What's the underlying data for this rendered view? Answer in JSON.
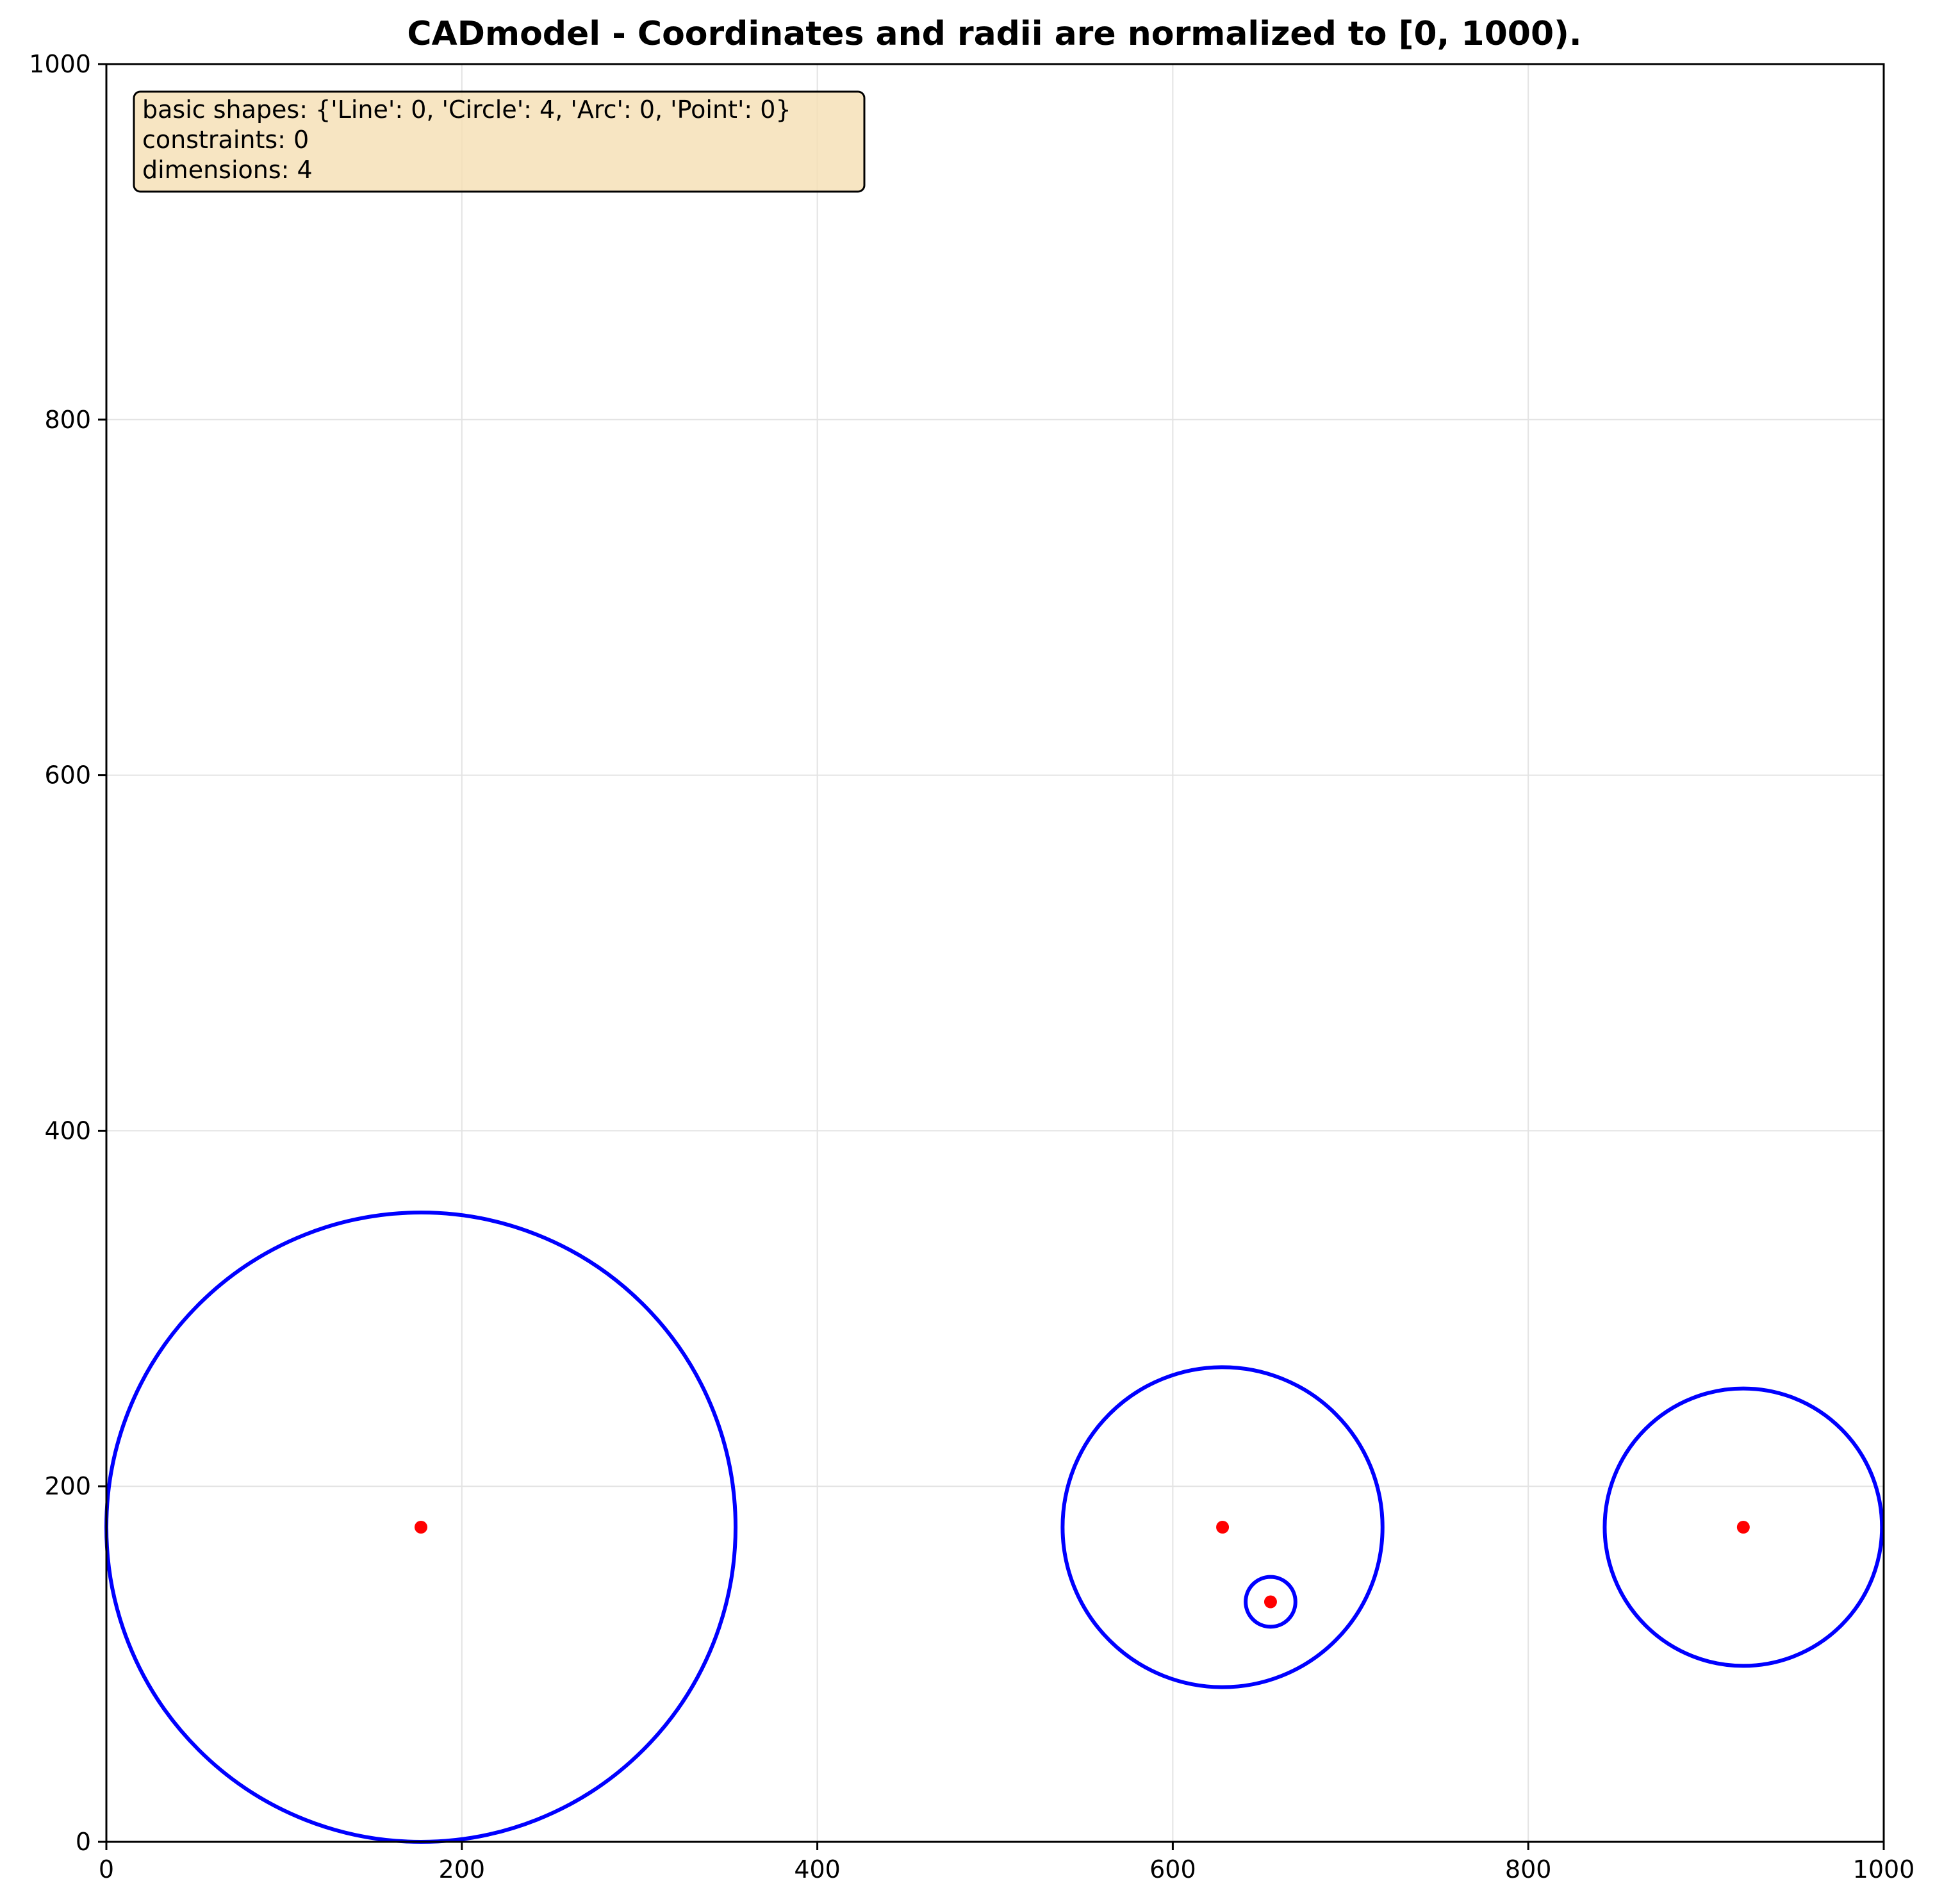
{
  "title": "CADmodel - Coordinates and radii are normalized to [0, 1000).",
  "info_box": {
    "lines": [
      "basic shapes: {'Line': 0, 'Circle': 4, 'Arc': 0, 'Point': 0}",
      "constraints: 0",
      "dimensions: 4"
    ],
    "background": "#f5deb3",
    "border": "#000000"
  },
  "chart_data": {
    "type": "scatter",
    "xlim": [
      0,
      1000
    ],
    "ylim": [
      0,
      1000
    ],
    "x_ticks": [
      "0",
      "200",
      "400",
      "600",
      "800",
      "1000"
    ],
    "y_ticks": [
      "0",
      "200",
      "400",
      "600",
      "800",
      "1000"
    ],
    "grid": true,
    "circles": [
      {
        "cx": 177,
        "cy": 177,
        "r": 177
      },
      {
        "cx": 628,
        "cy": 177,
        "r": 90
      },
      {
        "cx": 655,
        "cy": 135,
        "r": 14
      },
      {
        "cx": 921,
        "cy": 177,
        "r": 78
      }
    ],
    "centers": [
      {
        "x": 177,
        "y": 177
      },
      {
        "x": 628,
        "y": 177
      },
      {
        "x": 655,
        "y": 135
      },
      {
        "x": 921,
        "y": 177
      }
    ],
    "colors": {
      "circle": "#0000ff",
      "center": "#ff0000",
      "grid": "#e3e3e3",
      "axes": "#000000"
    }
  }
}
